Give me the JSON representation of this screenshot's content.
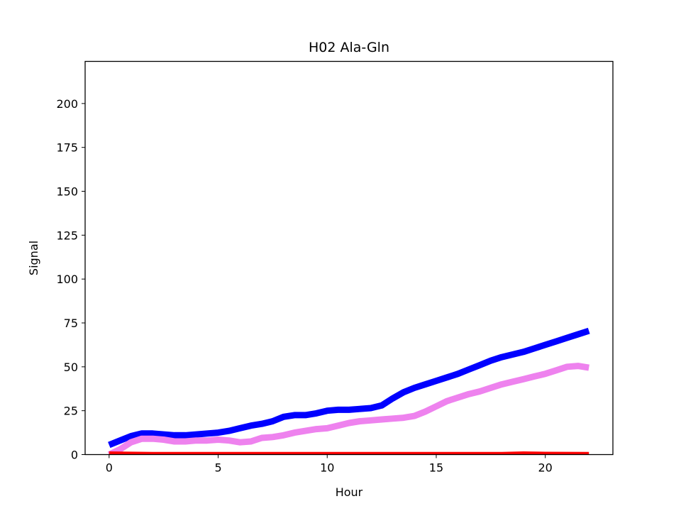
{
  "chart_data": {
    "type": "line",
    "title": "H02 Ala-Gln",
    "xlabel": "Hour",
    "ylabel": "Signal",
    "xlim": [
      -1.1,
      23.1
    ],
    "ylim": [
      0,
      224
    ],
    "xticks": [
      0,
      5,
      10,
      15,
      20
    ],
    "yticks": [
      0,
      25,
      50,
      75,
      100,
      125,
      150,
      175,
      200
    ],
    "grid": false,
    "legend": "none",
    "series": [
      {
        "color": "#0000ff",
        "x": [
          0,
          0.5,
          1,
          1.5,
          2,
          2.5,
          3,
          3.5,
          4,
          4.5,
          5,
          5.5,
          6,
          6.5,
          7,
          7.5,
          8,
          8.5,
          9,
          9.5,
          10,
          10.5,
          11,
          11.5,
          12,
          12.5,
          13,
          13.5,
          14,
          14.5,
          15,
          15.5,
          16,
          16.5,
          17,
          17.5,
          18,
          18.5,
          19,
          19.5,
          20,
          20.5,
          21,
          21.5,
          22
        ],
        "y": [
          5.5,
          8,
          10.5,
          12,
          12,
          11.5,
          11,
          11,
          11.5,
          12,
          12.5,
          13.5,
          15,
          16.5,
          17.5,
          19,
          21.5,
          22.5,
          22.5,
          23.5,
          25,
          25.5,
          25.5,
          26,
          26.5,
          28,
          32,
          35.5,
          38,
          40,
          42,
          44,
          46,
          48.5,
          51,
          53.5,
          55.5,
          57,
          58.5,
          60.5,
          62.5,
          64.5,
          66.5,
          68.5,
          70.5
        ]
      },
      {
        "color": "#ee82ee",
        "x": [
          0,
          0.5,
          1,
          1.5,
          2,
          2.5,
          3,
          3.5,
          4,
          4.5,
          5,
          5.5,
          6,
          6.5,
          7,
          7.5,
          8,
          8.5,
          9,
          9.5,
          10,
          10.5,
          11,
          11.5,
          12,
          12.5,
          13,
          13.5,
          14,
          14.5,
          15,
          15.5,
          16,
          16.5,
          17,
          17.5,
          18,
          18.5,
          19,
          19.5,
          20,
          20.5,
          21,
          21.5,
          22
        ],
        "y": [
          0,
          3,
          7,
          9,
          9,
          8.5,
          7.5,
          7.5,
          8,
          8,
          8.5,
          8,
          7,
          7.5,
          9.5,
          10,
          11,
          12.5,
          13.5,
          14.5,
          15,
          16.5,
          18,
          19,
          19.5,
          20,
          20.5,
          21,
          22,
          24.5,
          27.5,
          30.5,
          32.5,
          34.5,
          36,
          38,
          40,
          41.5,
          43,
          44.5,
          46,
          48,
          50,
          50.5,
          49.5
        ]
      },
      {
        "color": "#ff0000",
        "x": [
          0,
          2,
          4,
          6,
          8,
          10,
          12,
          14,
          16,
          18,
          19,
          20,
          22
        ],
        "y": [
          0.8,
          0.5,
          0.5,
          0.5,
          0.5,
          0.5,
          0.5,
          0.5,
          0.5,
          0.5,
          0.8,
          0.6,
          0.5
        ]
      }
    ]
  }
}
